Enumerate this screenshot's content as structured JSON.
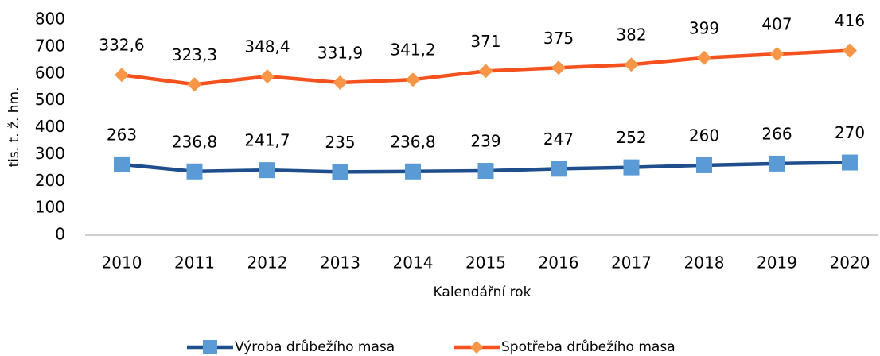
{
  "chart_data": {
    "type": "line",
    "stacked": true,
    "ylabel": "tis. t. ž. hm.",
    "xlabel": "Kalendářní rok",
    "categories": [
      "2010",
      "2011",
      "2012",
      "2013",
      "2014",
      "2015",
      "2016",
      "2017",
      "2018",
      "2019",
      "2020"
    ],
    "series": [
      {
        "name": "Výroba drůbežího masa",
        "color": "#1f4e8c",
        "marker": "square",
        "marker_color": "#5b9bd5",
        "values": [
          263,
          236.8,
          241.7,
          235,
          236.8,
          239,
          247,
          252,
          260,
          266,
          270
        ],
        "value_labels": [
          "263",
          "236,8",
          "241,7",
          "235",
          "236,8",
          "239",
          "247",
          "252",
          "260",
          "266",
          "270"
        ]
      },
      {
        "name": "Spotřeba drůbežího masa",
        "color": "#f4511e",
        "marker": "diamond",
        "marker_color": "#f79646",
        "values": [
          332.6,
          323.3,
          348.4,
          331.9,
          341.2,
          371,
          375,
          382,
          399,
          407,
          416
        ],
        "value_labels": [
          "332,6",
          "323,3",
          "348,4",
          "331,9",
          "341,2",
          "371",
          "375",
          "382",
          "399",
          "407",
          "416"
        ]
      }
    ],
    "ylim": [
      0,
      800
    ],
    "yticks": [
      0,
      100,
      200,
      300,
      400,
      500,
      600,
      700,
      800
    ],
    "grid": false,
    "legend": "bottom"
  }
}
